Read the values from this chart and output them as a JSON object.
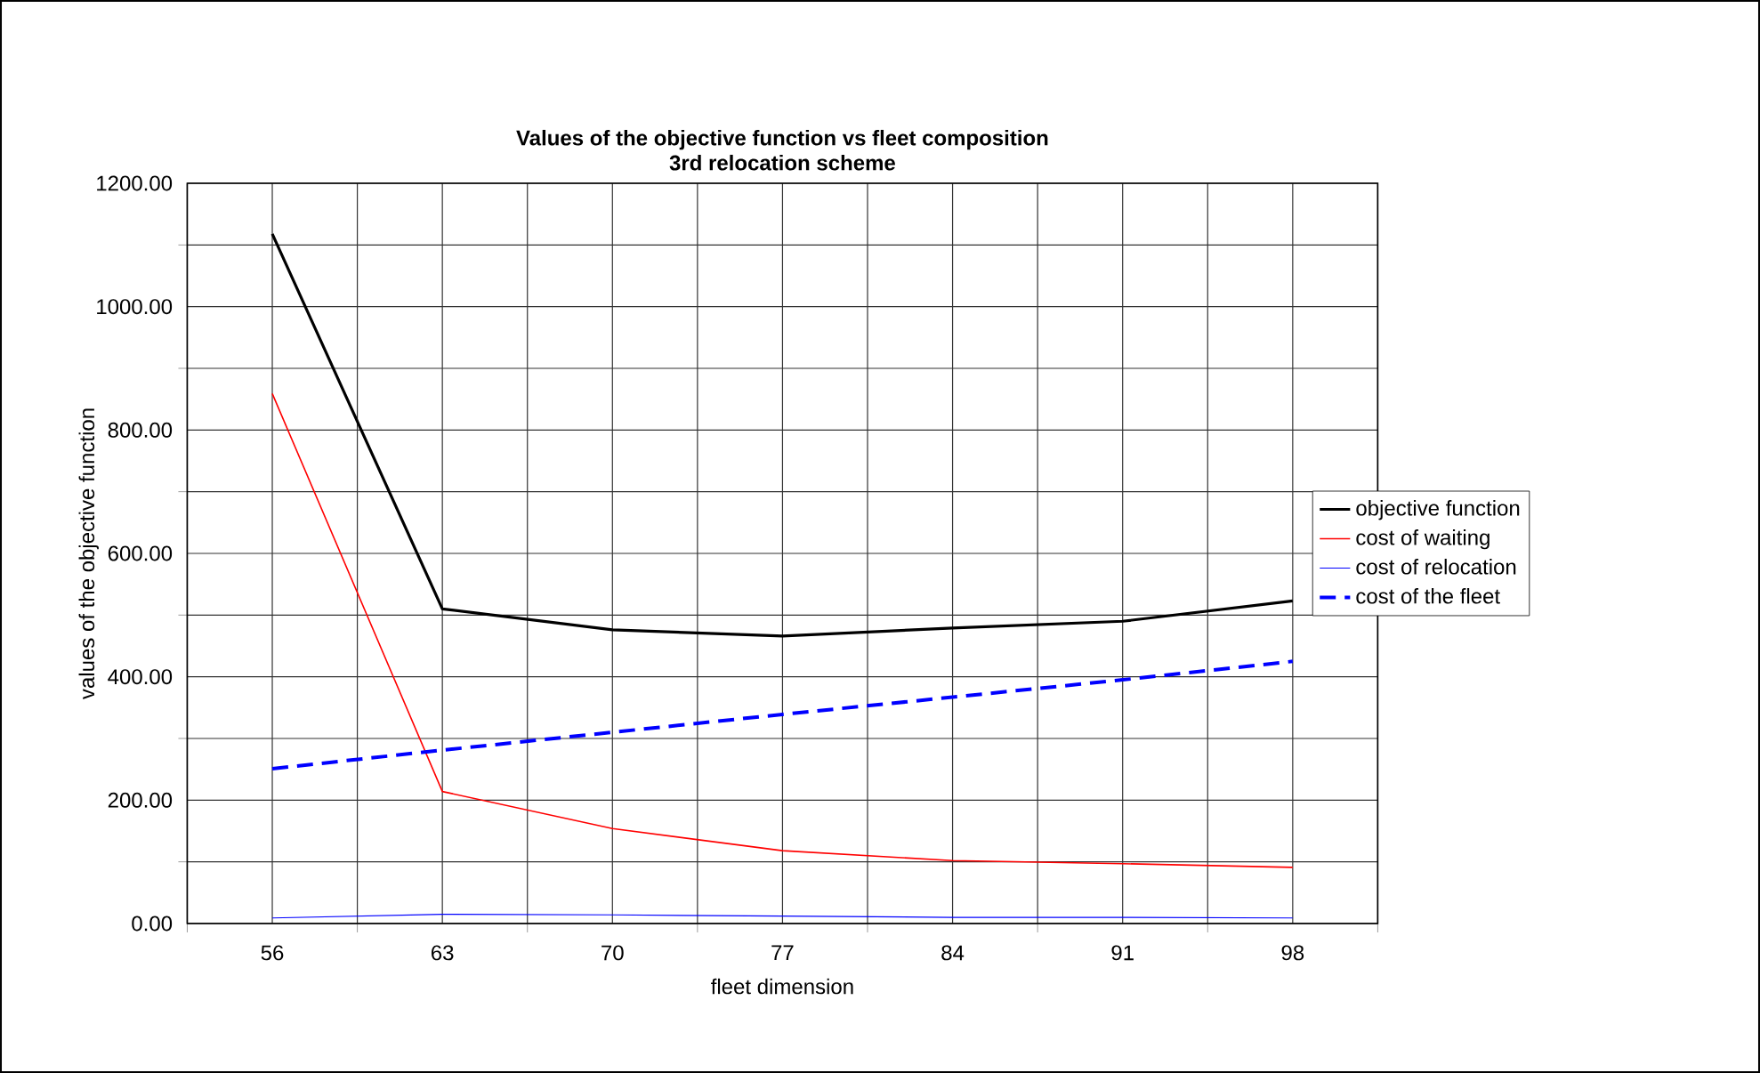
{
  "chart_data": {
    "type": "line",
    "title": "Values of the objective function vs fleet composition",
    "subtitle": "3rd relocation scheme",
    "xlabel": "fleet dimension",
    "ylabel": "values of the objective function",
    "categories": [
      "56",
      "63",
      "70",
      "77",
      "84",
      "91",
      "98"
    ],
    "series": [
      {
        "name": "objective function",
        "color": "#000000",
        "values": [
          1118,
          510,
          476,
          466,
          479,
          490,
          523
        ]
      },
      {
        "name": "cost of waiting",
        "color": "#ff0000",
        "values": [
          859,
          214,
          154,
          118,
          102,
          97,
          91
        ]
      },
      {
        "name": "cost of relocation",
        "color": "#0000ff",
        "values": [
          9,
          15,
          14,
          12,
          10,
          10,
          9
        ]
      },
      {
        "name": "cost of the fleet",
        "color": "#0000ff",
        "line_style": "dashed",
        "values": [
          251,
          281,
          310,
          339,
          367,
          395,
          425
        ]
      }
    ],
    "ylim": [
      0,
      1200
    ],
    "yticks": [
      {
        "value": 0,
        "label": "0.00"
      },
      {
        "value": 200,
        "label": "200.00"
      },
      {
        "value": 400,
        "label": "400.00"
      },
      {
        "value": 600,
        "label": "600.00"
      },
      {
        "value": 800,
        "label": "800.00"
      },
      {
        "value": 1000,
        "label": "1000.00"
      },
      {
        "value": 1200,
        "label": "1200.00"
      }
    ],
    "grid": true,
    "legend": "right",
    "marker": "none",
    "line_style": "solid"
  }
}
